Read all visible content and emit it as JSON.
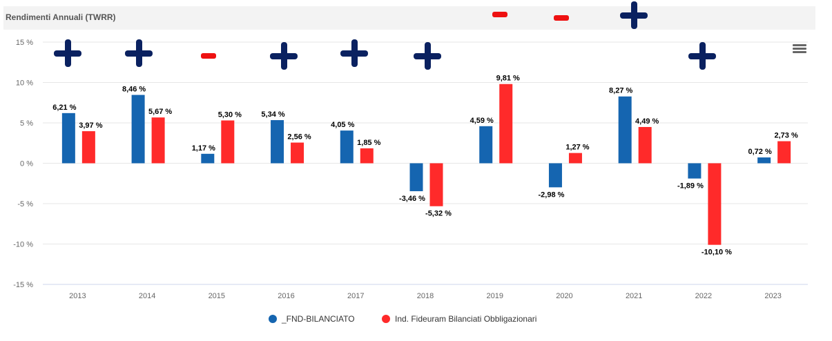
{
  "header": {
    "title": "Rendimenti Annuali (TWRR)"
  },
  "menu": {
    "icon": "hamburger-menu-icon"
  },
  "colors": {
    "series1": "#1565b0",
    "series2": "#ff2a2a",
    "plus_marker": "#0a2160",
    "minus_marker": "#ee1111",
    "grid": "#e6e6e6",
    "axis_label": "#666666",
    "data_label": "#000000"
  },
  "markers": [
    {
      "year": "2013",
      "type": "plus"
    },
    {
      "year": "2014",
      "type": "plus"
    },
    {
      "year": "2015",
      "type": "minus"
    },
    {
      "year": "2016",
      "type": "plus"
    },
    {
      "year": "2017",
      "type": "plus"
    },
    {
      "year": "2018",
      "type": "plus"
    },
    {
      "year": "2019",
      "type": "minus"
    },
    {
      "year": "2020",
      "type": "minus"
    },
    {
      "year": "2021",
      "type": "plus"
    },
    {
      "year": "2022",
      "type": "plus"
    }
  ],
  "chart_data": {
    "type": "bar",
    "title": "Rendimenti Annuali (TWRR)",
    "xlabel": "",
    "ylabel": "",
    "categories": [
      "2013",
      "2014",
      "2015",
      "2016",
      "2017",
      "2018",
      "2019",
      "2020",
      "2021",
      "2022",
      "2023"
    ],
    "series": [
      {
        "name": "_FND-BILANCIATO",
        "values": [
          6.21,
          8.46,
          1.17,
          5.34,
          4.05,
          -3.46,
          4.59,
          -2.98,
          8.27,
          -1.89,
          0.72
        ],
        "labels": [
          "6,21 %",
          "8,46 %",
          "1,17 %",
          "5,34 %",
          "4,05 %",
          "-3,46 %",
          "4,59 %",
          "-2,98 %",
          "8,27 %",
          "-1,89 %",
          "0,72 %"
        ]
      },
      {
        "name": "Ind. Fideuram Bilanciati Obbligazionari",
        "values": [
          3.97,
          5.67,
          5.3,
          2.56,
          1.85,
          -5.32,
          9.81,
          1.27,
          4.49,
          -10.1,
          2.73
        ],
        "labels": [
          "3,97 %",
          "5,67 %",
          "5,30 %",
          "2,56 %",
          "1,85 %",
          "-5,32 %",
          "9,81 %",
          "1,27 %",
          "4,49 %",
          "-10,10 %",
          "2,73 %"
        ]
      }
    ],
    "ylim": [
      -15,
      15
    ],
    "yticks": [
      15,
      10,
      5,
      0,
      -5,
      -10,
      -15
    ],
    "ytick_labels": [
      "15 %",
      "10 %",
      "5 %",
      "0 %",
      "-5 %",
      "-10 %",
      "-15 %"
    ],
    "grid": true,
    "legend": {
      "placement": "bottom-center",
      "entries": [
        "_FND-BILANCIATO",
        "Ind. Fideuram Bilanciati Obbligazionari"
      ]
    }
  }
}
